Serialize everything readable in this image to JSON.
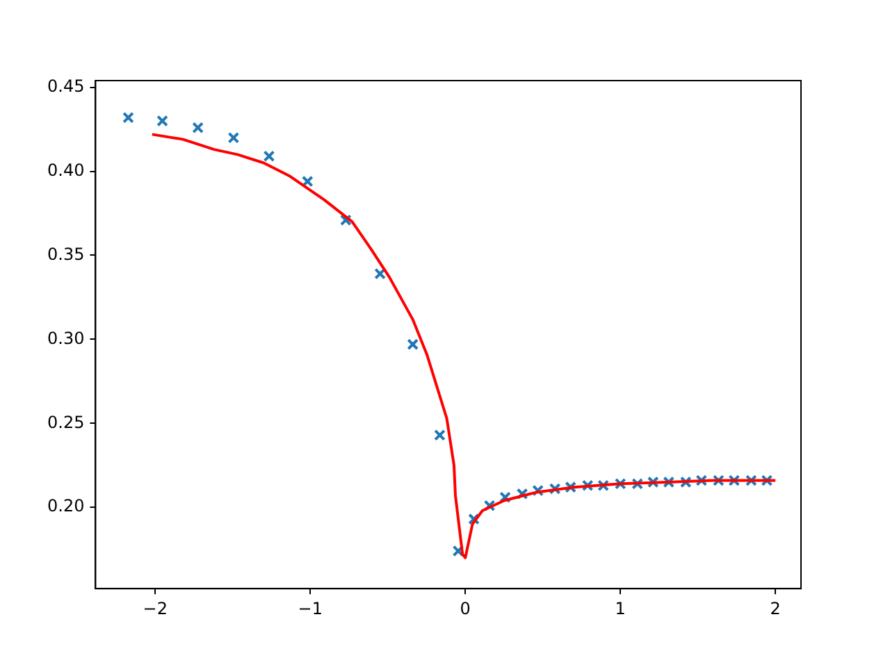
{
  "chart_data": {
    "type": "scatter",
    "xlim": [
      -2.385,
      2.165
    ],
    "ylim": [
      0.1516,
      0.454
    ],
    "xticks": [
      {
        "value": -2,
        "label": "−2"
      },
      {
        "value": -1,
        "label": "−1"
      },
      0,
      1,
      2
    ],
    "yticks": [
      {
        "value": 0.2,
        "label": "0.20"
      },
      0.25,
      {
        "value": 0.3,
        "label": "0.30"
      },
      0.35,
      {
        "value": 0.4,
        "label": "0.40"
      },
      0.45
    ],
    "grid": false,
    "legend": false,
    "series": [
      {
        "color": "#1f77b4",
        "marker": "cross",
        "x": [
          -2.174,
          -1.954,
          -1.725,
          -1.495,
          -1.266,
          -1.018,
          -0.771,
          -0.55,
          -0.339,
          -0.165,
          -0.046,
          0.055,
          0.156,
          0.257,
          0.367,
          0.468,
          0.578,
          0.679,
          0.789,
          0.89,
          1.0,
          1.11,
          1.211,
          1.312,
          1.422,
          1.523,
          1.633,
          1.734,
          1.844,
          1.945
        ],
        "values": [
          0.432,
          0.43,
          0.426,
          0.42,
          0.409,
          0.394,
          0.371,
          0.339,
          0.297,
          0.243,
          0.174,
          0.193,
          0.201,
          0.206,
          0.208,
          0.21,
          0.211,
          0.212,
          0.213,
          0.213,
          0.214,
          0.214,
          0.215,
          0.215,
          0.215,
          0.216,
          0.216,
          0.216,
          0.216,
          0.216
        ]
      },
      {
        "type": "line",
        "color": "#ff0000",
        "marker": "none",
        "x": [
          -2.02,
          -1.82,
          -1.62,
          -1.47,
          -1.3,
          -1.13,
          -0.91,
          -0.73,
          -0.61,
          -0.49,
          -0.34,
          -0.248,
          -0.12,
          -0.073,
          -0.064,
          -0.018,
          0.0,
          0.046,
          0.11,
          0.25,
          0.46,
          0.7,
          1.0,
          1.3,
          1.6,
          2.0
        ],
        "values": [
          0.422,
          0.419,
          0.413,
          0.41,
          0.405,
          0.397,
          0.383,
          0.37,
          0.354,
          0.337,
          0.312,
          0.291,
          0.253,
          0.225,
          0.207,
          0.172,
          0.17,
          0.19,
          0.198,
          0.204,
          0.209,
          0.212,
          0.214,
          0.215,
          0.216,
          0.216
        ]
      }
    ]
  }
}
